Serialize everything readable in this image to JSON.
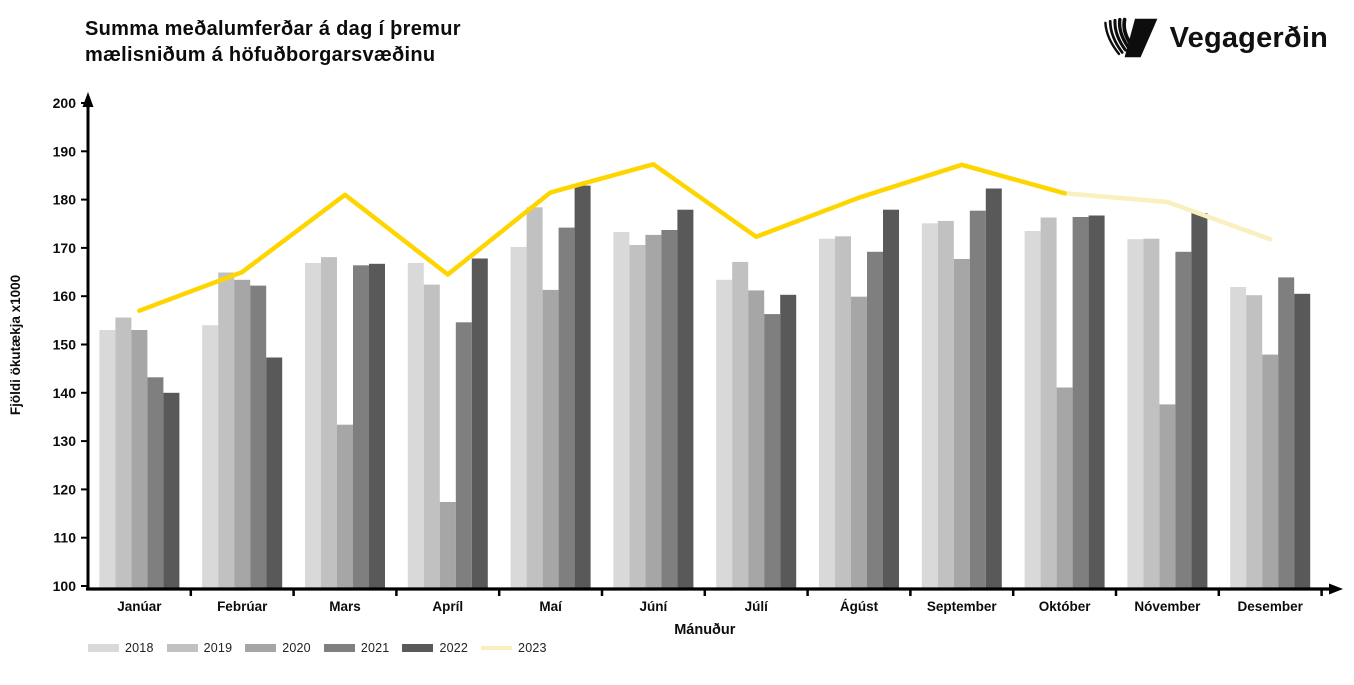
{
  "header": {
    "title_line1": "Summa meðalumferðar á dag í þremur",
    "title_line2": "mælisniðum á höfuðborgarsvæðinu",
    "logo_text": "Vegagerðin"
  },
  "chart_data": {
    "type": "bar",
    "subtype": "grouped-bars-with-line-overlay",
    "title": "Summa meðalumferðar á dag í þremur mælisniðum á höfuðborgarsvæðinu",
    "xlabel": "Mánuður",
    "ylabel": "Fjöldi ökutækja x1000",
    "ylim": [
      100,
      200
    ],
    "yticks": [
      100,
      110,
      120,
      130,
      140,
      150,
      160,
      170,
      180,
      190,
      200
    ],
    "grid": false,
    "legend_position": "bottom-left",
    "categories": [
      "Janúar",
      "Febrúar",
      "Mars",
      "Apríl",
      "Maí",
      "Júní",
      "Júlí",
      "Ágúst",
      "September",
      "Október",
      "Nóvember",
      "Desember"
    ],
    "series": [
      {
        "name": "2018",
        "type": "bar",
        "color": "#d9d9d9",
        "values": [
          153,
          154,
          166.9,
          166.9,
          170.2,
          173.3,
          163.4,
          171.9,
          175.1,
          173.5,
          171.8,
          161.9
        ]
      },
      {
        "name": "2019",
        "type": "bar",
        "color": "#c1c1c1",
        "values": [
          155.6,
          164.9,
          168.1,
          162.4,
          178.4,
          170.6,
          167.1,
          172.4,
          175.6,
          176.3,
          171.9,
          160.2
        ]
      },
      {
        "name": "2020",
        "type": "bar",
        "color": "#a6a6a6",
        "values": [
          153,
          163.4,
          133.4,
          117.4,
          161.3,
          172.7,
          161.2,
          159.9,
          167.7,
          141.1,
          137.6,
          147.9
        ]
      },
      {
        "name": "2021",
        "type": "bar",
        "color": "#7f7f7f",
        "values": [
          143.2,
          162.2,
          166.4,
          154.6,
          174.2,
          173.7,
          156.3,
          169.2,
          177.7,
          176.4,
          169.2,
          163.9
        ]
      },
      {
        "name": "2022",
        "type": "bar",
        "color": "#595959",
        "values": [
          140,
          147.3,
          166.7,
          167.8,
          182.9,
          177.9,
          160.3,
          177.9,
          182.3,
          176.7,
          177.2,
          160.5
        ]
      },
      {
        "name": "2023",
        "type": "line",
        "color": "#ffd500",
        "color_faded": "#f9efbf",
        "fade_from_index": 9,
        "values": [
          157,
          165,
          181,
          164.5,
          181.5,
          187.3,
          172.3,
          180.4,
          187.2,
          181.3,
          179.5,
          171.8
        ]
      }
    ]
  }
}
